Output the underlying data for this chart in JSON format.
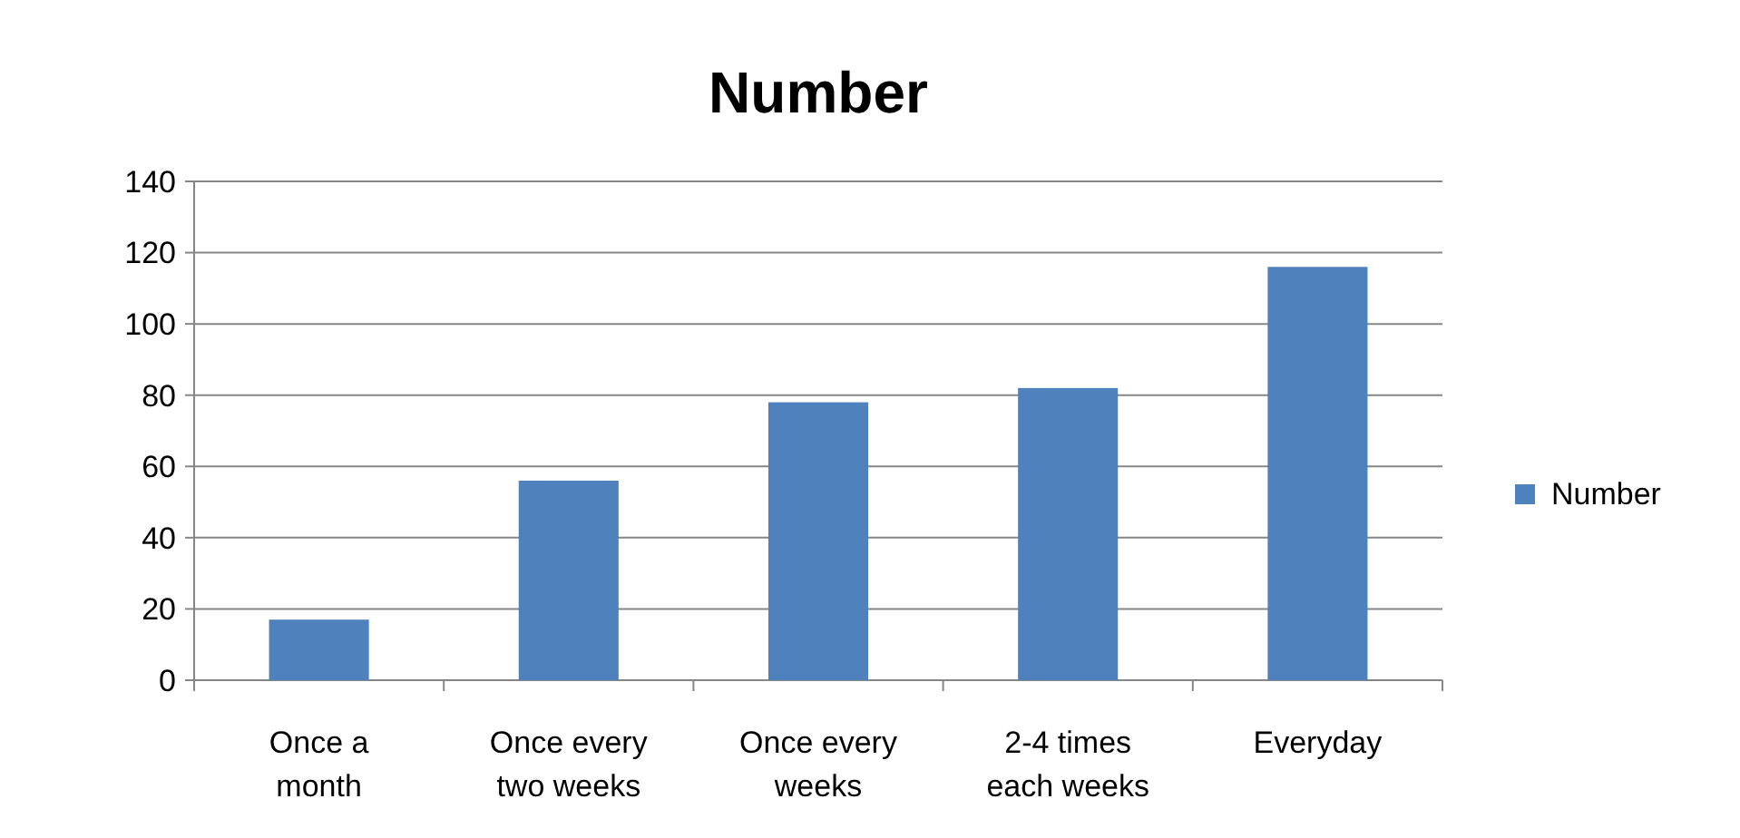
{
  "chart_data": {
    "type": "bar",
    "title": "Number",
    "categories": [
      "Once a month",
      "Once every two weeks",
      "Once every weeks",
      "2-4 times each weeks",
      "Everyday"
    ],
    "series": [
      {
        "name": "Number",
        "color": "#4f81bd",
        "values": [
          17,
          56,
          78,
          82,
          116
        ]
      }
    ],
    "ylim": [
      0,
      140
    ],
    "yticks": [
      0,
      20,
      40,
      60,
      80,
      100,
      120,
      140
    ],
    "grid": "y",
    "legend": "right"
  }
}
